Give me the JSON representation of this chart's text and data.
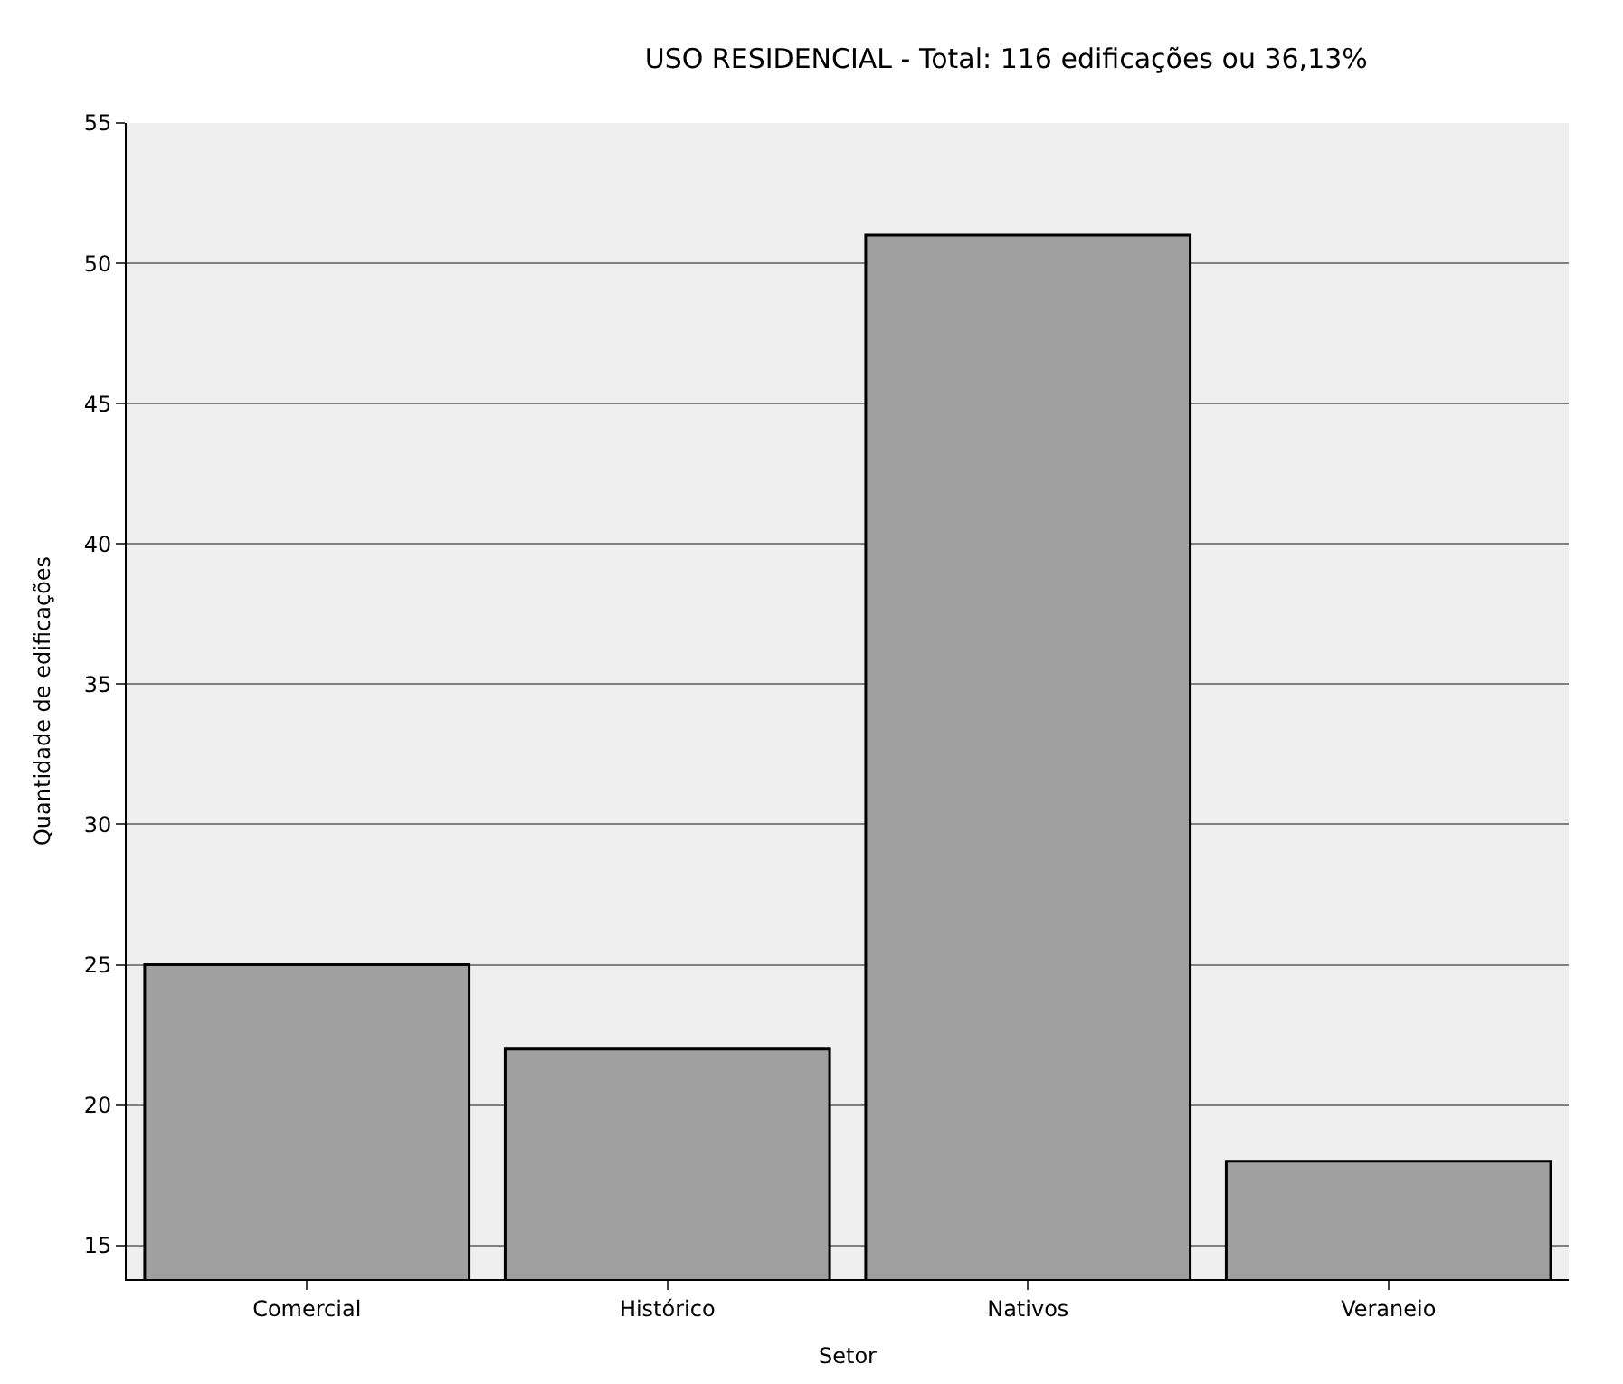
{
  "chart_data": {
    "type": "bar",
    "title": "USO RESIDENCIAL - Total: 116 edificações ou 36,13%",
    "xlabel": "Setor",
    "ylabel": "Quantidade de edificações",
    "categories": [
      "Comercial",
      "Histórico",
      "Nativos",
      "Veraneio"
    ],
    "values": [
      25,
      22,
      51,
      18
    ],
    "color": "#a0a0a0",
    "ylim": [
      13.8,
      55
    ],
    "yticks": [
      15,
      20,
      25,
      30,
      35,
      40,
      45,
      50,
      55
    ],
    "grid": "y"
  }
}
